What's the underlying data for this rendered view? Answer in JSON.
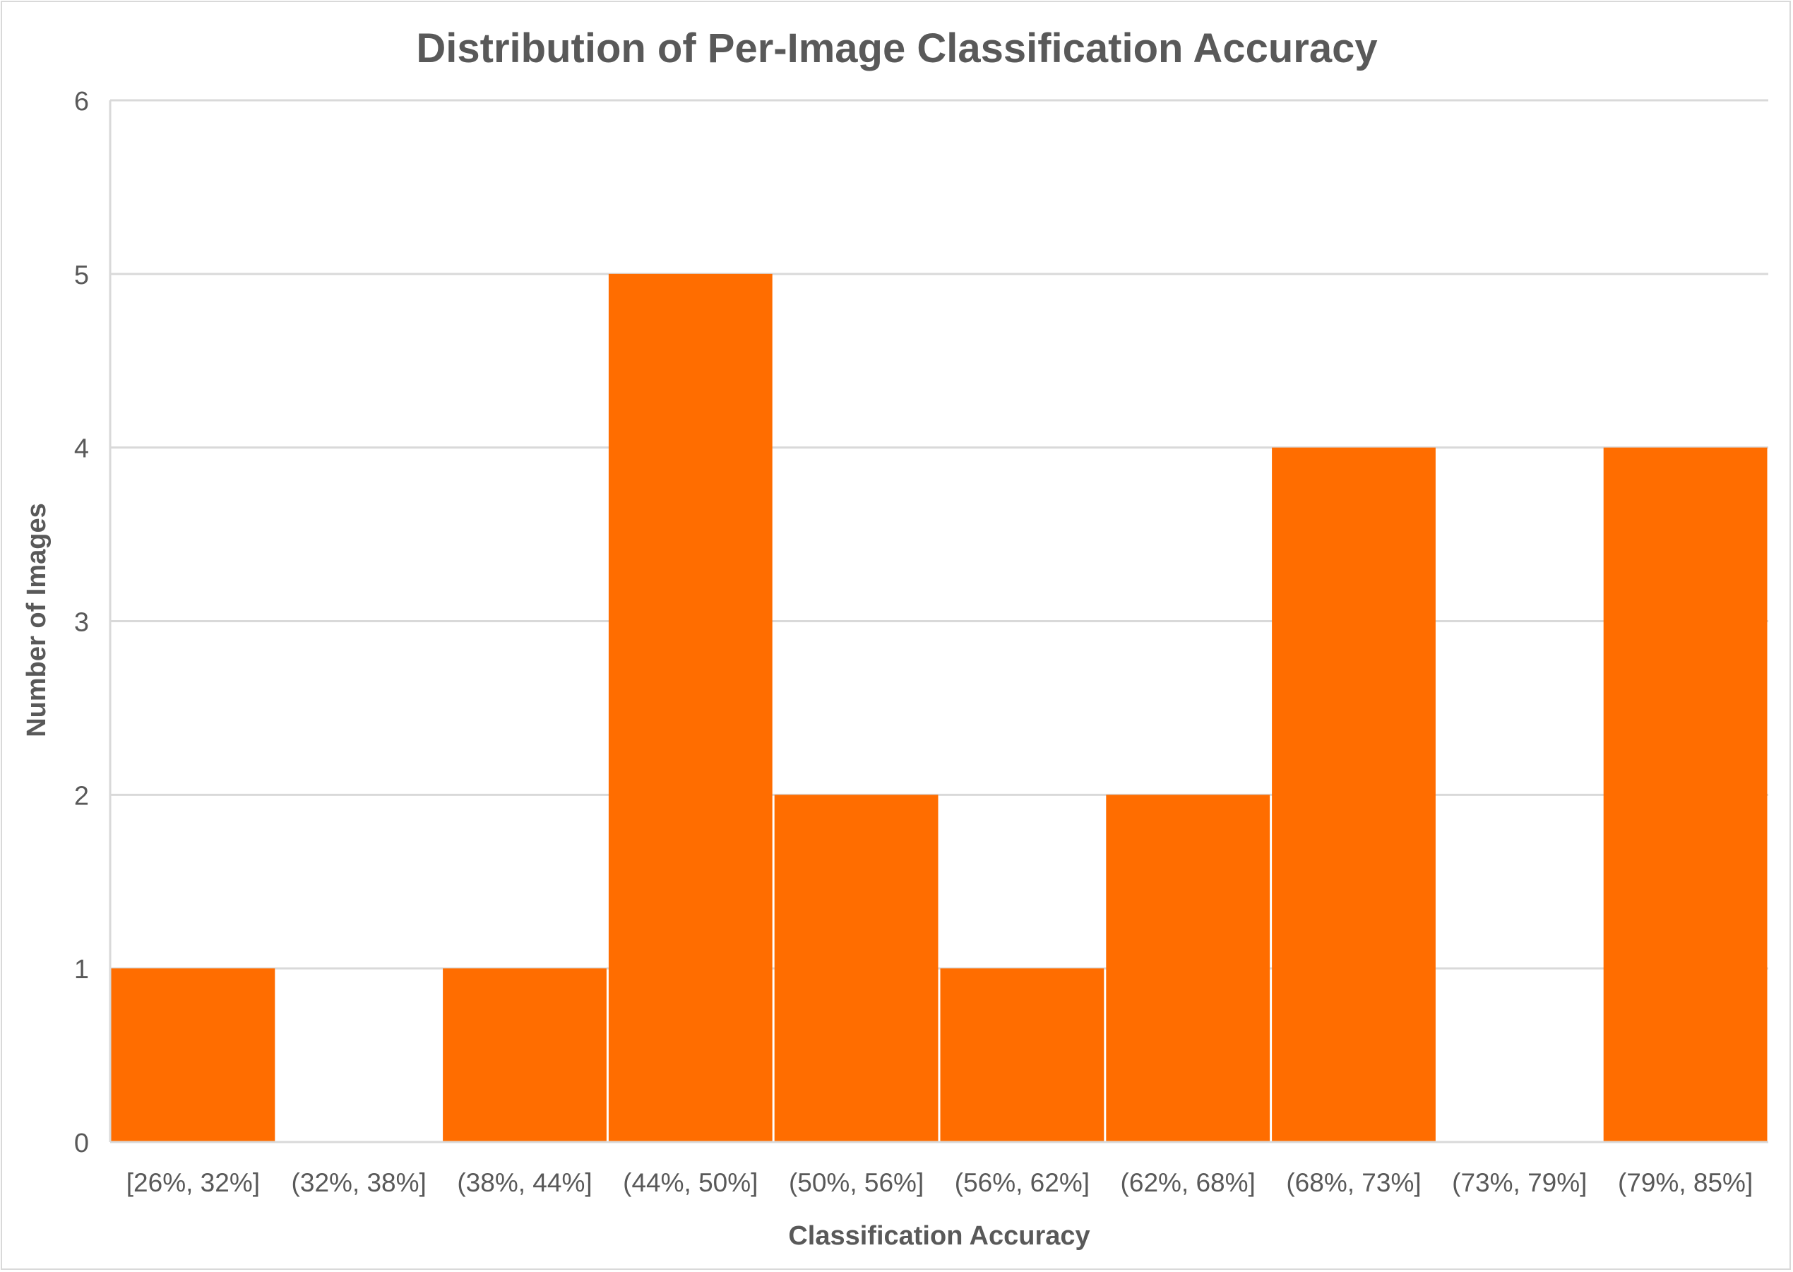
{
  "chart_data": {
    "type": "bar",
    "title": "Distribution of Per-Image Classification Accuracy",
    "xlabel": "Classification Accuracy",
    "ylabel": "Number of Images",
    "categories": [
      "[26%, 32%]",
      "(32%, 38%]",
      "(38%, 44%]",
      "(44%, 50%]",
      "(50%, 56%]",
      "(56%, 62%]",
      "(62%, 68%]",
      "(68%, 73%]",
      "(73%, 79%]",
      "(79%, 85%]"
    ],
    "values": [
      1,
      0,
      1,
      5,
      2,
      1,
      2,
      4,
      0,
      4
    ],
    "ylim": [
      0,
      6
    ],
    "yticks": [
      "0",
      "1",
      "2",
      "3",
      "4",
      "5",
      "6"
    ],
    "grid": true,
    "bar_color": "#ff6d00",
    "grid_color": "#d9d9d9",
    "text_color": "#595959"
  }
}
